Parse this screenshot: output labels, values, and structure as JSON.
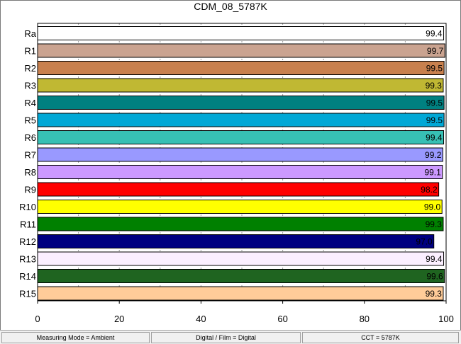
{
  "chart_data": {
    "type": "bar",
    "orientation": "horizontal",
    "title": "CDM_08_5787K",
    "xlim": [
      0,
      100
    ],
    "xticks": [
      0,
      20,
      40,
      60,
      80,
      100
    ],
    "grid": "vertical dashed",
    "categories": [
      "Ra",
      "R1",
      "R2",
      "R3",
      "R4",
      "R5",
      "R6",
      "R7",
      "R8",
      "R9",
      "R10",
      "R11",
      "R12",
      "R13",
      "R14",
      "R15"
    ],
    "values": [
      99.4,
      99.7,
      99.5,
      99.3,
      99.5,
      99.5,
      99.4,
      99.2,
      99.1,
      98.2,
      99.0,
      99.3,
      97.0,
      99.4,
      99.6,
      99.3
    ],
    "value_labels": [
      "99.4",
      "99.7",
      "99.5",
      "99.3",
      "99.5",
      "99.5",
      "99.4",
      "99.2",
      "99.1",
      "98.2",
      "99.0",
      "99.3",
      "97.0",
      "99.4",
      "99.6",
      "99.3"
    ],
    "colors": [
      "#ffffff",
      "#caa390",
      "#c8804e",
      "#c0b833",
      "#008080",
      "#00a8d6",
      "#37c0b4",
      "#9999ff",
      "#cc99ff",
      "#ff0000",
      "#ffff00",
      "#008000",
      "#000080",
      "#fbefff",
      "#1f6420",
      "#ffcc99"
    ]
  },
  "status": {
    "measuring_mode": "Measuring Mode = Ambient",
    "digital_film": "Digital / Film = Digital",
    "cct": "CCT = 5787K"
  }
}
